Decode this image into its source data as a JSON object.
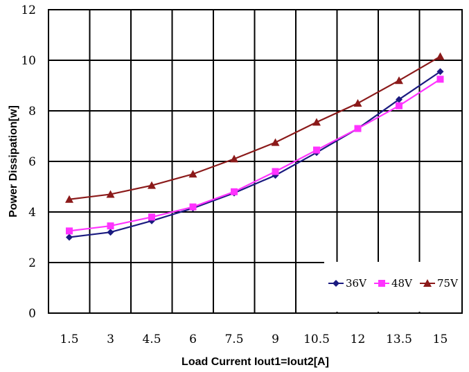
{
  "chart_data": {
    "type": "line",
    "xlabel": "Load Current Iout1=Iout2[A]",
    "ylabel": "Power Dissipation[w]",
    "x": [
      1.5,
      3,
      4.5,
      6,
      7.5,
      9,
      10.5,
      12,
      13.5,
      15
    ],
    "x_tick_labels": [
      "1.5",
      "3",
      "4.5",
      "6",
      "7.5",
      "9",
      "10.5",
      "12",
      "13.5",
      "15"
    ],
    "ylim": [
      0,
      12
    ],
    "y_ticks": [
      0,
      2,
      4,
      6,
      8,
      10,
      12
    ],
    "grid": true,
    "legend": "bottom-right",
    "series": [
      {
        "name": "36V",
        "color": "#1a1a80",
        "marker": "diamond",
        "values": [
          3.0,
          3.2,
          3.65,
          4.15,
          4.75,
          5.45,
          6.35,
          7.3,
          8.45,
          9.55
        ]
      },
      {
        "name": "48V",
        "color": "#ff33ff",
        "marker": "square",
        "values": [
          3.25,
          3.45,
          3.8,
          4.2,
          4.8,
          5.6,
          6.45,
          7.3,
          8.2,
          9.25
        ]
      },
      {
        "name": "75V",
        "color": "#8b1a1a",
        "marker": "triangle",
        "values": [
          4.5,
          4.7,
          5.05,
          5.5,
          6.1,
          6.75,
          7.55,
          8.3,
          9.2,
          10.15
        ]
      }
    ]
  }
}
